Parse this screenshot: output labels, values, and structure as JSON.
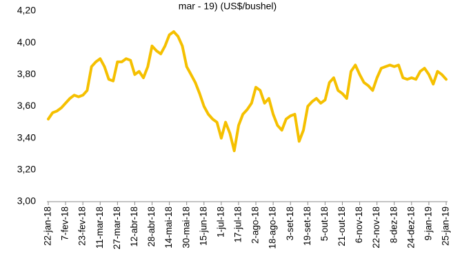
{
  "chart_data": {
    "type": "line",
    "title": "mar - 19)  (US$/bushel)",
    "categories": [
      "22-jan-18",
      null,
      null,
      null,
      "7-fev-18",
      null,
      null,
      null,
      "23-fev-18",
      null,
      null,
      null,
      "11-mar-18",
      null,
      null,
      null,
      "27-mar-18",
      null,
      null,
      null,
      "12-abr-18",
      null,
      null,
      null,
      "28-abr-18",
      null,
      null,
      null,
      "14-mai-18",
      null,
      null,
      null,
      "30-mai-18",
      null,
      null,
      null,
      "15-jun-18",
      null,
      null,
      null,
      "1-jul-18",
      null,
      null,
      null,
      "17-jul-18",
      null,
      null,
      null,
      "2-ago-18",
      null,
      null,
      null,
      "18-ago-18",
      null,
      null,
      null,
      "3-set-18",
      null,
      null,
      null,
      "19-set-18",
      null,
      null,
      null,
      "5-out-18",
      null,
      null,
      null,
      "21-out-18",
      null,
      null,
      null,
      "6-nov-18",
      null,
      null,
      null,
      "22-nov-18",
      null,
      null,
      null,
      "8-dez-18",
      null,
      null,
      null,
      "24-dez-18",
      null,
      null,
      null,
      "9-jan-19",
      null,
      null,
      null,
      "25-jan-19"
    ],
    "values": [
      3.52,
      3.56,
      3.57,
      3.59,
      3.62,
      3.65,
      3.67,
      3.66,
      3.67,
      3.7,
      3.85,
      3.88,
      3.9,
      3.85,
      3.77,
      3.76,
      3.88,
      3.88,
      3.9,
      3.89,
      3.8,
      3.82,
      3.78,
      3.85,
      3.98,
      3.95,
      3.93,
      3.98,
      4.05,
      4.07,
      4.04,
      3.98,
      3.85,
      3.8,
      3.75,
      3.68,
      3.6,
      3.55,
      3.52,
      3.5,
      3.4,
      3.5,
      3.43,
      3.32,
      3.48,
      3.55,
      3.58,
      3.62,
      3.72,
      3.7,
      3.62,
      3.65,
      3.55,
      3.48,
      3.45,
      3.52,
      3.54,
      3.55,
      3.38,
      3.45,
      3.6,
      3.63,
      3.65,
      3.62,
      3.64,
      3.75,
      3.78,
      3.7,
      3.68,
      3.65,
      3.82,
      3.86,
      3.8,
      3.75,
      3.73,
      3.7,
      3.78,
      3.84,
      3.85,
      3.86,
      3.85,
      3.86,
      3.78,
      3.77,
      3.78,
      3.77,
      3.82,
      3.84,
      3.8,
      3.74,
      3.82,
      3.8,
      3.77
    ],
    "color": "#f5c000",
    "ylim": [
      3.0,
      4.2
    ],
    "yticks": [
      {
        "value": 3.0,
        "label": "3,00"
      },
      {
        "value": 3.2,
        "label": "3,20"
      },
      {
        "value": 3.4,
        "label": "3,40"
      },
      {
        "value": 3.6,
        "label": "3,60"
      },
      {
        "value": 3.8,
        "label": "3,80"
      },
      {
        "value": 4.0,
        "label": "4,00"
      },
      {
        "value": 4.2,
        "label": "4,20"
      }
    ]
  }
}
